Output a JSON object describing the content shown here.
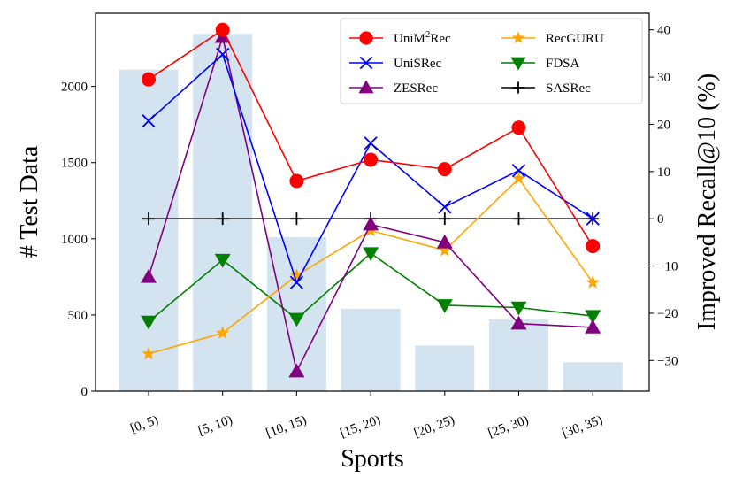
{
  "chart_data": {
    "type": "bar+line",
    "xlabel": "Sports",
    "ylabel_left": "# Test Data",
    "ylabel_right": "Improved Recall@10 (%)",
    "categories": [
      "[0, 5)",
      "[5, 10)",
      "[10, 15)",
      "[15, 20)",
      "[20, 25)",
      "[25, 30)",
      "[30, 35)"
    ],
    "bars": {
      "values": [
        2110,
        2345,
        1010,
        540,
        300,
        470,
        190
      ],
      "color": "#d3e3ef"
    },
    "left_axis": {
      "ylim": [
        0,
        2480
      ],
      "ticks": [
        0,
        500,
        1000,
        1500,
        2000
      ]
    },
    "right_axis": {
      "ylim": [
        -36.5,
        43.5
      ],
      "ticks": [
        -30,
        -20,
        -10,
        0,
        10,
        20,
        30,
        40
      ]
    },
    "legend": {
      "placement": "top-right",
      "uni_prefix": "UniM",
      "uni_sup": "2",
      "uni_suffix": "Rec"
    },
    "series": [
      {
        "name": "UniM2Rec",
        "marker": "circle",
        "color": "#ff0000",
        "values": [
          29.5,
          40,
          8,
          12.5,
          10.5,
          19.3,
          -5.8
        ]
      },
      {
        "name": "UniSRec",
        "marker": "x",
        "color": "#0000ff",
        "values": [
          20.7,
          34.8,
          -13.5,
          16,
          2.5,
          10.2,
          0
        ]
      },
      {
        "name": "ZESRec",
        "marker": "triangle-up",
        "color": "#800080",
        "values": [
          -12.3,
          38.5,
          -32.3,
          -1.2,
          -5,
          -22.2,
          -23
        ]
      },
      {
        "name": "RecGURU",
        "marker": "star",
        "color": "#ffa500",
        "values": [
          -28.6,
          -24.2,
          -12,
          -2.5,
          -6.7,
          8.5,
          -13.5
        ]
      },
      {
        "name": "FDSA",
        "marker": "triangle-down",
        "color": "#008000",
        "values": [
          -21.8,
          -8.7,
          -21.2,
          -7.3,
          -18.3,
          -18.8,
          -20.6
        ]
      },
      {
        "name": "SASRec",
        "marker": "plus",
        "color": "#000000",
        "values": [
          0,
          0,
          0,
          0,
          0,
          0,
          0
        ]
      }
    ]
  }
}
